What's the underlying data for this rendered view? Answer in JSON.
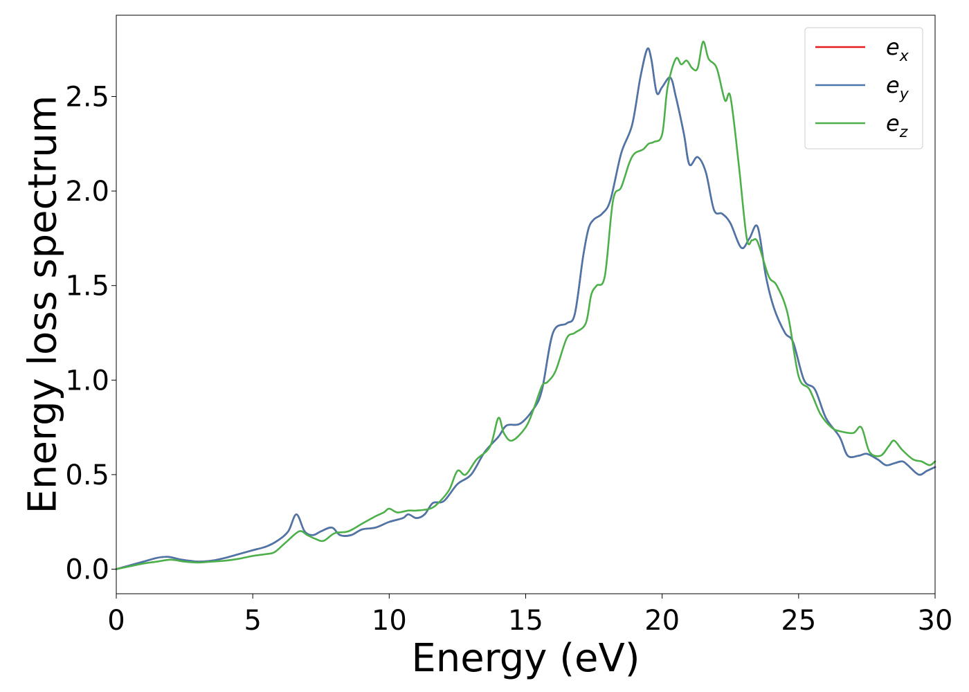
{
  "chart_data": {
    "type": "line",
    "title": "",
    "xlabel": "Energy (eV)",
    "ylabel": "Energy loss spectrum",
    "xlim": [
      0,
      30
    ],
    "ylim": [
      -0.13,
      2.93
    ],
    "xticks": [
      0,
      5,
      10,
      15,
      20,
      25,
      30
    ],
    "xtick_labels": [
      "0",
      "5",
      "10",
      "15",
      "20",
      "25",
      "30"
    ],
    "yticks": [
      0.0,
      0.5,
      1.0,
      1.5,
      2.0,
      2.5
    ],
    "ytick_labels": [
      "0.0",
      "0.5",
      "1.0",
      "1.5",
      "2.0",
      "2.5"
    ],
    "grid": false,
    "legend_position": "top-right",
    "series": [
      {
        "name": "e_x",
        "legend_base": "e",
        "legend_sub": "x",
        "color": "#e41a1c",
        "x": [
          0,
          0.5,
          1,
          1.5,
          1.9,
          2.4,
          3,
          3.5,
          4,
          4.5,
          5,
          5.5,
          5.9,
          6.3,
          6.6,
          6.9,
          7.2,
          7.5,
          7.9,
          8.2,
          8.6,
          9,
          9.5,
          10,
          10.5,
          10.7,
          11,
          11.3,
          11.6,
          12,
          12.5,
          13,
          13.5,
          14,
          14.3,
          14.8,
          15.3,
          15.6,
          16,
          16.5,
          16.8,
          17.1,
          17.3,
          17.5,
          17.8,
          18.1,
          18.5,
          18.9,
          19.2,
          19.45,
          19.6,
          19.8,
          20,
          20.3,
          20.5,
          20.8,
          21,
          21.3,
          21.6,
          21.9,
          22.2,
          22.5,
          22.9,
          23.2,
          23.5,
          23.8,
          24.1,
          24.5,
          24.8,
          25.2,
          25.6,
          26,
          26.5,
          26.8,
          27.2,
          27.5,
          27.9,
          28.2,
          28.5,
          28.8,
          29,
          29.4,
          29.7,
          30
        ],
        "y": [
          0.0,
          0.02,
          0.04,
          0.06,
          0.065,
          0.05,
          0.04,
          0.045,
          0.06,
          0.08,
          0.1,
          0.12,
          0.15,
          0.2,
          0.29,
          0.2,
          0.18,
          0.2,
          0.22,
          0.18,
          0.18,
          0.21,
          0.22,
          0.25,
          0.27,
          0.29,
          0.27,
          0.29,
          0.35,
          0.36,
          0.45,
          0.5,
          0.62,
          0.7,
          0.76,
          0.77,
          0.85,
          0.95,
          1.25,
          1.3,
          1.35,
          1.65,
          1.8,
          1.85,
          1.88,
          1.95,
          2.2,
          2.35,
          2.6,
          2.75,
          2.7,
          2.52,
          2.55,
          2.6,
          2.5,
          2.3,
          2.14,
          2.18,
          2.1,
          1.9,
          1.88,
          1.83,
          1.7,
          1.75,
          1.81,
          1.55,
          1.38,
          1.25,
          1.2,
          1.0,
          0.95,
          0.8,
          0.7,
          0.6,
          0.6,
          0.61,
          0.58,
          0.55,
          0.56,
          0.57,
          0.55,
          0.5,
          0.52,
          0.54
        ]
      },
      {
        "name": "e_y",
        "legend_base": "e",
        "legend_sub": "y",
        "color": "#4a77aa",
        "x": [
          0,
          0.5,
          1,
          1.5,
          1.9,
          2.4,
          3,
          3.5,
          4,
          4.5,
          5,
          5.5,
          5.9,
          6.3,
          6.6,
          6.9,
          7.2,
          7.5,
          7.9,
          8.2,
          8.6,
          9,
          9.5,
          10,
          10.5,
          10.7,
          11,
          11.3,
          11.6,
          12,
          12.5,
          13,
          13.5,
          14,
          14.3,
          14.8,
          15.3,
          15.6,
          16,
          16.5,
          16.8,
          17.1,
          17.3,
          17.5,
          17.8,
          18.1,
          18.5,
          18.9,
          19.2,
          19.45,
          19.6,
          19.8,
          20,
          20.3,
          20.5,
          20.8,
          21,
          21.3,
          21.6,
          21.9,
          22.2,
          22.5,
          22.9,
          23.2,
          23.5,
          23.8,
          24.1,
          24.5,
          24.8,
          25.2,
          25.6,
          26,
          26.5,
          26.8,
          27.2,
          27.5,
          27.9,
          28.2,
          28.5,
          28.8,
          29,
          29.4,
          29.7,
          30
        ],
        "y": [
          0.0,
          0.02,
          0.04,
          0.06,
          0.065,
          0.05,
          0.04,
          0.045,
          0.06,
          0.08,
          0.1,
          0.12,
          0.15,
          0.2,
          0.29,
          0.2,
          0.18,
          0.2,
          0.22,
          0.18,
          0.18,
          0.21,
          0.22,
          0.25,
          0.27,
          0.29,
          0.27,
          0.29,
          0.35,
          0.36,
          0.45,
          0.5,
          0.62,
          0.7,
          0.76,
          0.77,
          0.85,
          0.95,
          1.25,
          1.3,
          1.35,
          1.65,
          1.8,
          1.85,
          1.88,
          1.95,
          2.2,
          2.35,
          2.6,
          2.75,
          2.7,
          2.52,
          2.55,
          2.6,
          2.5,
          2.3,
          2.14,
          2.18,
          2.1,
          1.9,
          1.88,
          1.83,
          1.7,
          1.75,
          1.81,
          1.55,
          1.38,
          1.25,
          1.2,
          1.0,
          0.95,
          0.8,
          0.7,
          0.6,
          0.6,
          0.61,
          0.58,
          0.55,
          0.56,
          0.57,
          0.55,
          0.5,
          0.52,
          0.54
        ]
      },
      {
        "name": "e_z",
        "legend_base": "e",
        "legend_sub": "z",
        "color": "#4daf4a",
        "x": [
          0,
          0.5,
          1,
          1.5,
          2,
          2.5,
          3,
          3.5,
          4,
          4.5,
          5,
          5.5,
          5.8,
          6.2,
          6.7,
          7,
          7.3,
          7.6,
          8,
          8.5,
          9,
          9.5,
          9.8,
          10,
          10.3,
          10.7,
          11,
          11.5,
          11.8,
          12.2,
          12.5,
          12.8,
          13.2,
          13.7,
          14,
          14.2,
          14.5,
          15,
          15.3,
          15.6,
          15.8,
          16.1,
          16.5,
          16.8,
          17.2,
          17.4,
          17.6,
          17.9,
          18.2,
          18.5,
          18.8,
          19,
          19.3,
          19.5,
          19.7,
          20,
          20.2,
          20.5,
          20.7,
          20.9,
          21.1,
          21.3,
          21.5,
          21.7,
          22,
          22.3,
          22.5,
          22.8,
          23.1,
          23.3,
          23.5,
          23.9,
          24.2,
          24.6,
          25,
          25.4,
          25.8,
          26.2,
          26.5,
          27,
          27.3,
          27.6,
          28,
          28.3,
          28.5,
          28.8,
          29.2,
          29.5,
          29.8,
          30
        ],
        "y": [
          0.0,
          0.015,
          0.03,
          0.04,
          0.05,
          0.04,
          0.035,
          0.04,
          0.045,
          0.055,
          0.07,
          0.08,
          0.09,
          0.14,
          0.2,
          0.18,
          0.16,
          0.15,
          0.19,
          0.2,
          0.24,
          0.28,
          0.3,
          0.32,
          0.3,
          0.31,
          0.31,
          0.32,
          0.35,
          0.42,
          0.52,
          0.5,
          0.58,
          0.65,
          0.8,
          0.72,
          0.68,
          0.75,
          0.85,
          0.97,
          0.99,
          1.05,
          1.22,
          1.25,
          1.3,
          1.45,
          1.5,
          1.55,
          1.95,
          2.02,
          2.15,
          2.2,
          2.22,
          2.25,
          2.26,
          2.3,
          2.55,
          2.7,
          2.67,
          2.69,
          2.65,
          2.65,
          2.79,
          2.7,
          2.65,
          2.48,
          2.5,
          2.15,
          1.75,
          1.74,
          1.73,
          1.55,
          1.5,
          1.35,
          1.02,
          0.95,
          0.82,
          0.75,
          0.73,
          0.72,
          0.75,
          0.62,
          0.6,
          0.65,
          0.68,
          0.63,
          0.58,
          0.57,
          0.55,
          0.57
        ]
      }
    ]
  }
}
